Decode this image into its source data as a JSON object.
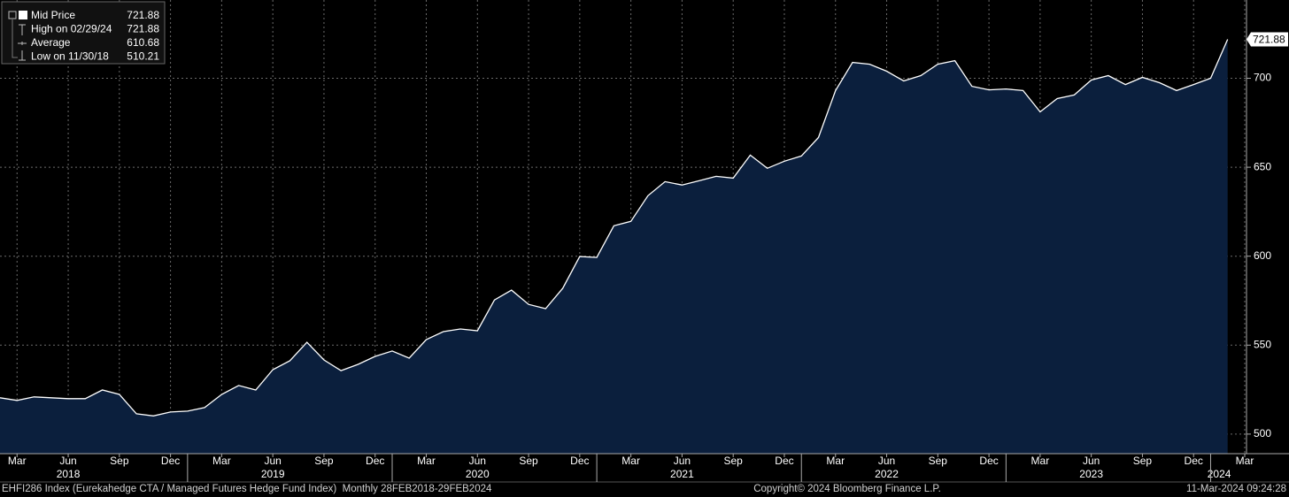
{
  "chart_data": {
    "type": "area",
    "x": [
      "2018-02",
      "2018-03",
      "2018-04",
      "2018-05",
      "2018-06",
      "2018-07",
      "2018-08",
      "2018-09",
      "2018-10",
      "2018-11",
      "2018-12",
      "2019-01",
      "2019-02",
      "2019-03",
      "2019-04",
      "2019-05",
      "2019-06",
      "2019-07",
      "2019-08",
      "2019-09",
      "2019-10",
      "2019-11",
      "2019-12",
      "2020-01",
      "2020-02",
      "2020-03",
      "2020-04",
      "2020-05",
      "2020-06",
      "2020-07",
      "2020-08",
      "2020-09",
      "2020-10",
      "2020-11",
      "2020-12",
      "2021-01",
      "2021-02",
      "2021-03",
      "2021-04",
      "2021-05",
      "2021-06",
      "2021-07",
      "2021-08",
      "2021-09",
      "2021-10",
      "2021-11",
      "2021-12",
      "2022-01",
      "2022-02",
      "2022-03",
      "2022-04",
      "2022-05",
      "2022-06",
      "2022-07",
      "2022-08",
      "2022-09",
      "2022-10",
      "2022-11",
      "2022-12",
      "2023-01",
      "2023-02",
      "2023-03",
      "2023-04",
      "2023-05",
      "2023-06",
      "2023-07",
      "2023-08",
      "2023-09",
      "2023-10",
      "2023-11",
      "2023-12",
      "2024-01",
      "2024-02"
    ],
    "series": [
      {
        "name": "Mid Price",
        "color": "#ffffff",
        "fill": "#0b1f3d",
        "values": [
          520.4,
          518.9,
          520.9,
          520.4,
          519.9,
          519.9,
          524.8,
          522.3,
          511.4,
          510.21,
          512.4,
          512.9,
          514.9,
          522.3,
          527.3,
          524.8,
          536.2,
          541.2,
          551.6,
          541.7,
          535.7,
          539.2,
          543.7,
          546.7,
          542.7,
          553.1,
          557.6,
          559.1,
          558.1,
          575.4,
          580.9,
          572.9,
          570.5,
          581.9,
          599.8,
          599.3,
          617.1,
          619.6,
          634.0,
          641.9,
          640.0,
          642.4,
          644.9,
          643.9,
          656.8,
          649.4,
          653.4,
          656.3,
          666.7,
          693.1,
          708.9,
          707.9,
          704.0,
          698.5,
          701.5,
          707.9,
          709.9,
          695.5,
          693.5,
          694.0,
          693.1,
          681.1,
          688.6,
          690.6,
          699.0,
          701.5,
          696.5,
          700.5,
          697.5,
          693.1,
          696.5,
          700.0,
          721.88
        ]
      }
    ],
    "xlim": [
      "2018-02",
      "2024-03"
    ],
    "xticks": [
      {
        "value": "2018-03",
        "label": "Mar"
      },
      {
        "value": "2018-06",
        "label": "Jun"
      },
      {
        "value": "2018-09",
        "label": "Sep"
      },
      {
        "value": "2018-12",
        "label": "Dec"
      },
      {
        "value": "2019-03",
        "label": "Mar"
      },
      {
        "value": "2019-06",
        "label": "Jun"
      },
      {
        "value": "2019-09",
        "label": "Sep"
      },
      {
        "value": "2019-12",
        "label": "Dec"
      },
      {
        "value": "2020-03",
        "label": "Mar"
      },
      {
        "value": "2020-06",
        "label": "Jun"
      },
      {
        "value": "2020-09",
        "label": "Sep"
      },
      {
        "value": "2020-12",
        "label": "Dec"
      },
      {
        "value": "2021-03",
        "label": "Mar"
      },
      {
        "value": "2021-06",
        "label": "Jun"
      },
      {
        "value": "2021-09",
        "label": "Sep"
      },
      {
        "value": "2021-12",
        "label": "Dec"
      },
      {
        "value": "2022-03",
        "label": "Mar"
      },
      {
        "value": "2022-06",
        "label": "Jun"
      },
      {
        "value": "2022-09",
        "label": "Sep"
      },
      {
        "value": "2022-12",
        "label": "Dec"
      },
      {
        "value": "2023-03",
        "label": "Mar"
      },
      {
        "value": "2023-06",
        "label": "Jun"
      },
      {
        "value": "2023-09",
        "label": "Sep"
      },
      {
        "value": "2023-12",
        "label": "Dec"
      },
      {
        "value": "2024-03",
        "label": "Mar"
      }
    ],
    "years": [
      "2018",
      "2019",
      "2020",
      "2021",
      "2022",
      "2023",
      "2024"
    ],
    "ylim": [
      489,
      744
    ],
    "yticks": [
      500,
      550,
      600,
      650,
      700
    ],
    "grid": true,
    "legend_position": "upper left",
    "stats": [
      {
        "label": "Mid Price",
        "value": 721.88
      },
      {
        "label": "High on 02/29/24",
        "value": 721.88
      },
      {
        "label": "Average",
        "value": 610.68
      },
      {
        "label": "Low on 11/30/18",
        "value": 510.21
      }
    ],
    "footer_left": "EHFI286 Index (Eurekahedge CTA / Managed Futures Hedge Fund Index)  Monthly 28FEB2018-29FEB2024",
    "footer_center": "Copyright© 2024 Bloomberg Finance L.P.",
    "footer_right": "11-Mar-2024 09:24:28"
  }
}
